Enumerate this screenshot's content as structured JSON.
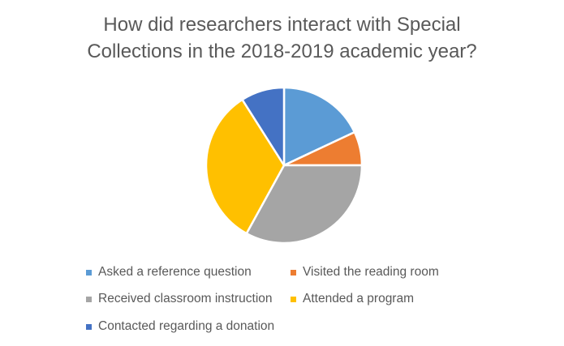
{
  "chart_data": {
    "type": "pie",
    "title_lines": [
      "How did researchers interact with Special",
      "Collections in the 2018-2019 academic year?"
    ],
    "slices": [
      {
        "label": "Asked a reference question",
        "value": 18,
        "color": "#5B9BD5"
      },
      {
        "label": "Visited the reading room",
        "value": 7,
        "color": "#ED7D31"
      },
      {
        "label": "Received classroom instruction",
        "value": 33,
        "color": "#A5A5A5"
      },
      {
        "label": "Attended a program",
        "value": 33,
        "color": "#FFC000"
      },
      {
        "label": "Contacted regarding a donation",
        "value": 9,
        "color": "#4472C4"
      }
    ],
    "start": "12 o'clock",
    "direction": "clockwise",
    "legend_position": "bottom"
  }
}
